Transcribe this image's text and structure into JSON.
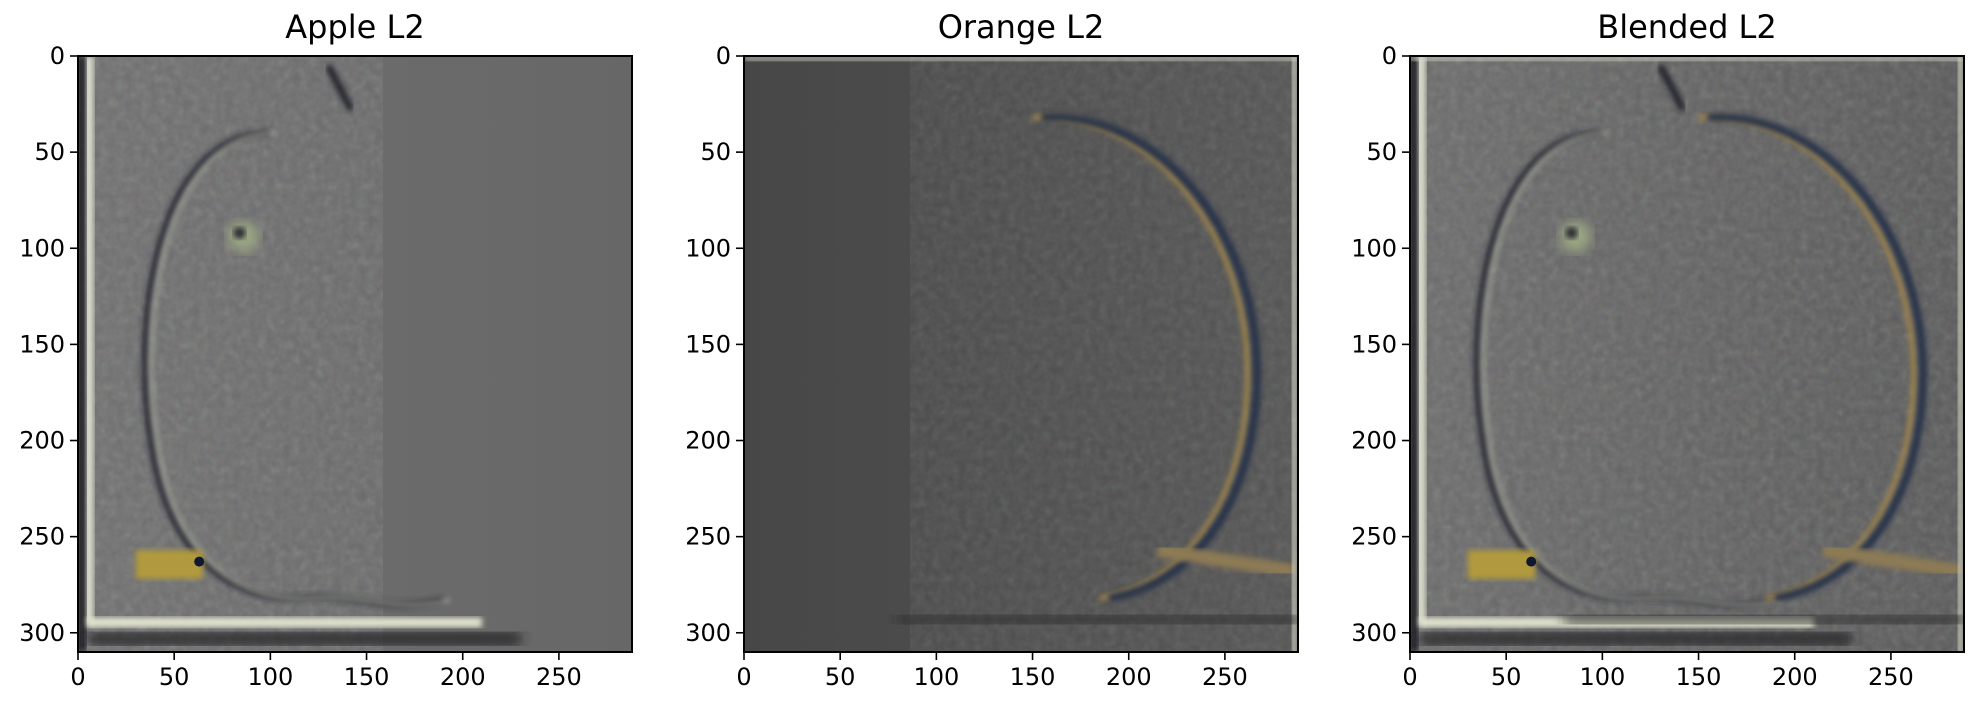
{
  "chart_data": [
    {
      "type": "image",
      "title": "Apple L2",
      "xlim": [
        0,
        288
      ],
      "ylim": [
        310,
        0
      ],
      "xticks": [
        0,
        50,
        100,
        150,
        200,
        250
      ],
      "yticks": [
        0,
        50,
        100,
        150,
        200,
        250,
        300
      ],
      "grid": false,
      "content": "apple-laplacian",
      "colors": {
        "left": "#707070",
        "right": "#676767"
      }
    },
    {
      "type": "image",
      "title": "Orange L2",
      "xlim": [
        0,
        288
      ],
      "ylim": [
        310,
        0
      ],
      "xticks": [
        0,
        50,
        100,
        150,
        200,
        250
      ],
      "yticks": [
        0,
        50,
        100,
        150,
        200,
        250,
        300
      ],
      "grid": false,
      "content": "orange-laplacian",
      "colors": {
        "left": "#474747",
        "right": "#555555"
      }
    },
    {
      "type": "image",
      "title": "Blended L2",
      "xlim": [
        0,
        288
      ],
      "ylim": [
        310,
        0
      ],
      "xticks": [
        0,
        50,
        100,
        150,
        200,
        250
      ],
      "yticks": [
        0,
        50,
        100,
        150,
        200,
        250,
        300
      ],
      "grid": false,
      "content": "blended-laplacian",
      "colors": {
        "left": "#6c6c6c",
        "right": "#5a5a5a"
      }
    }
  ]
}
